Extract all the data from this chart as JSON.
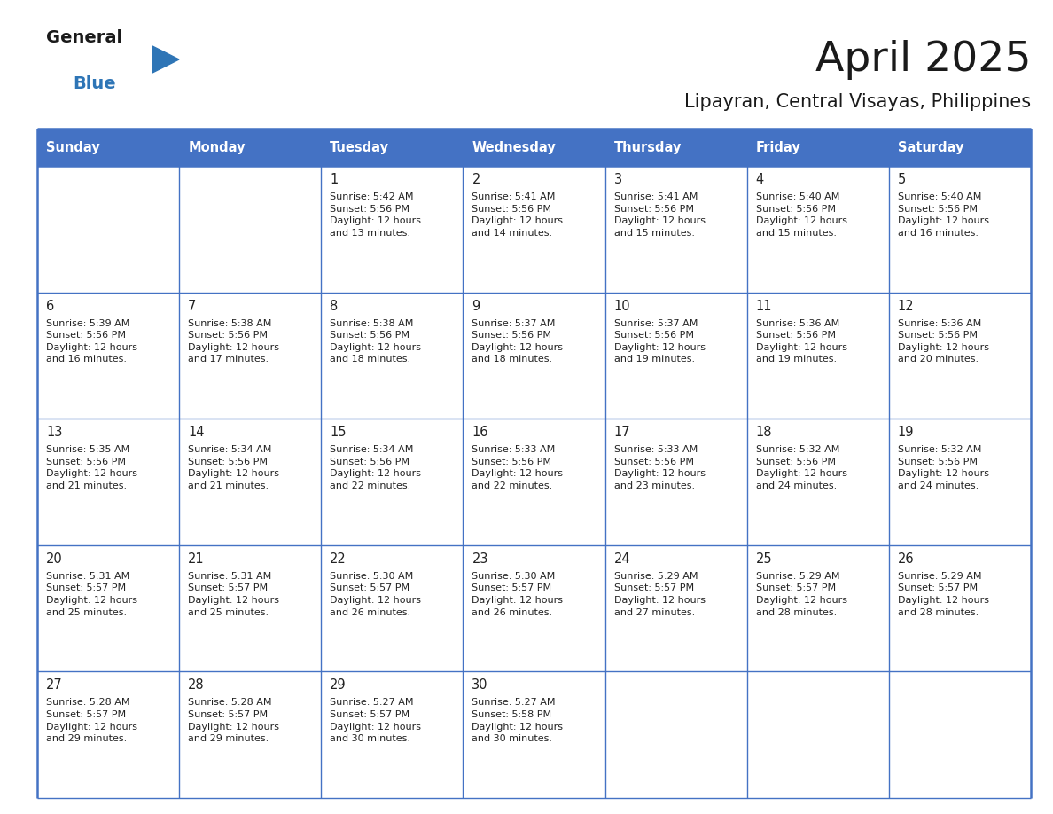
{
  "title": "April 2025",
  "subtitle": "Lipayran, Central Visayas, Philippines",
  "days_of_week": [
    "Sunday",
    "Monday",
    "Tuesday",
    "Wednesday",
    "Thursday",
    "Friday",
    "Saturday"
  ],
  "header_bg": "#4472C4",
  "header_text": "#FFFFFF",
  "cell_bg": "#FFFFFF",
  "cell_text": "#222222",
  "grid_color": "#4472C4",
  "title_color": "#1a1a1a",
  "subtitle_color": "#1a1a1a",
  "logo_general_color": "#1a1a1a",
  "logo_blue_color": "#2E75B6",
  "weeks": [
    [
      {
        "day": "",
        "info": ""
      },
      {
        "day": "",
        "info": ""
      },
      {
        "day": "1",
        "info": "Sunrise: 5:42 AM\nSunset: 5:56 PM\nDaylight: 12 hours\nand 13 minutes."
      },
      {
        "day": "2",
        "info": "Sunrise: 5:41 AM\nSunset: 5:56 PM\nDaylight: 12 hours\nand 14 minutes."
      },
      {
        "day": "3",
        "info": "Sunrise: 5:41 AM\nSunset: 5:56 PM\nDaylight: 12 hours\nand 15 minutes."
      },
      {
        "day": "4",
        "info": "Sunrise: 5:40 AM\nSunset: 5:56 PM\nDaylight: 12 hours\nand 15 minutes."
      },
      {
        "day": "5",
        "info": "Sunrise: 5:40 AM\nSunset: 5:56 PM\nDaylight: 12 hours\nand 16 minutes."
      }
    ],
    [
      {
        "day": "6",
        "info": "Sunrise: 5:39 AM\nSunset: 5:56 PM\nDaylight: 12 hours\nand 16 minutes."
      },
      {
        "day": "7",
        "info": "Sunrise: 5:38 AM\nSunset: 5:56 PM\nDaylight: 12 hours\nand 17 minutes."
      },
      {
        "day": "8",
        "info": "Sunrise: 5:38 AM\nSunset: 5:56 PM\nDaylight: 12 hours\nand 18 minutes."
      },
      {
        "day": "9",
        "info": "Sunrise: 5:37 AM\nSunset: 5:56 PM\nDaylight: 12 hours\nand 18 minutes."
      },
      {
        "day": "10",
        "info": "Sunrise: 5:37 AM\nSunset: 5:56 PM\nDaylight: 12 hours\nand 19 minutes."
      },
      {
        "day": "11",
        "info": "Sunrise: 5:36 AM\nSunset: 5:56 PM\nDaylight: 12 hours\nand 19 minutes."
      },
      {
        "day": "12",
        "info": "Sunrise: 5:36 AM\nSunset: 5:56 PM\nDaylight: 12 hours\nand 20 minutes."
      }
    ],
    [
      {
        "day": "13",
        "info": "Sunrise: 5:35 AM\nSunset: 5:56 PM\nDaylight: 12 hours\nand 21 minutes."
      },
      {
        "day": "14",
        "info": "Sunrise: 5:34 AM\nSunset: 5:56 PM\nDaylight: 12 hours\nand 21 minutes."
      },
      {
        "day": "15",
        "info": "Sunrise: 5:34 AM\nSunset: 5:56 PM\nDaylight: 12 hours\nand 22 minutes."
      },
      {
        "day": "16",
        "info": "Sunrise: 5:33 AM\nSunset: 5:56 PM\nDaylight: 12 hours\nand 22 minutes."
      },
      {
        "day": "17",
        "info": "Sunrise: 5:33 AM\nSunset: 5:56 PM\nDaylight: 12 hours\nand 23 minutes."
      },
      {
        "day": "18",
        "info": "Sunrise: 5:32 AM\nSunset: 5:56 PM\nDaylight: 12 hours\nand 24 minutes."
      },
      {
        "day": "19",
        "info": "Sunrise: 5:32 AM\nSunset: 5:56 PM\nDaylight: 12 hours\nand 24 minutes."
      }
    ],
    [
      {
        "day": "20",
        "info": "Sunrise: 5:31 AM\nSunset: 5:57 PM\nDaylight: 12 hours\nand 25 minutes."
      },
      {
        "day": "21",
        "info": "Sunrise: 5:31 AM\nSunset: 5:57 PM\nDaylight: 12 hours\nand 25 minutes."
      },
      {
        "day": "22",
        "info": "Sunrise: 5:30 AM\nSunset: 5:57 PM\nDaylight: 12 hours\nand 26 minutes."
      },
      {
        "day": "23",
        "info": "Sunrise: 5:30 AM\nSunset: 5:57 PM\nDaylight: 12 hours\nand 26 minutes."
      },
      {
        "day": "24",
        "info": "Sunrise: 5:29 AM\nSunset: 5:57 PM\nDaylight: 12 hours\nand 27 minutes."
      },
      {
        "day": "25",
        "info": "Sunrise: 5:29 AM\nSunset: 5:57 PM\nDaylight: 12 hours\nand 28 minutes."
      },
      {
        "day": "26",
        "info": "Sunrise: 5:29 AM\nSunset: 5:57 PM\nDaylight: 12 hours\nand 28 minutes."
      }
    ],
    [
      {
        "day": "27",
        "info": "Sunrise: 5:28 AM\nSunset: 5:57 PM\nDaylight: 12 hours\nand 29 minutes."
      },
      {
        "day": "28",
        "info": "Sunrise: 5:28 AM\nSunset: 5:57 PM\nDaylight: 12 hours\nand 29 minutes."
      },
      {
        "day": "29",
        "info": "Sunrise: 5:27 AM\nSunset: 5:57 PM\nDaylight: 12 hours\nand 30 minutes."
      },
      {
        "day": "30",
        "info": "Sunrise: 5:27 AM\nSunset: 5:58 PM\nDaylight: 12 hours\nand 30 minutes."
      },
      {
        "day": "",
        "info": ""
      },
      {
        "day": "",
        "info": ""
      },
      {
        "day": "",
        "info": ""
      }
    ]
  ],
  "fig_width": 11.88,
  "fig_height": 9.18,
  "dpi": 100
}
